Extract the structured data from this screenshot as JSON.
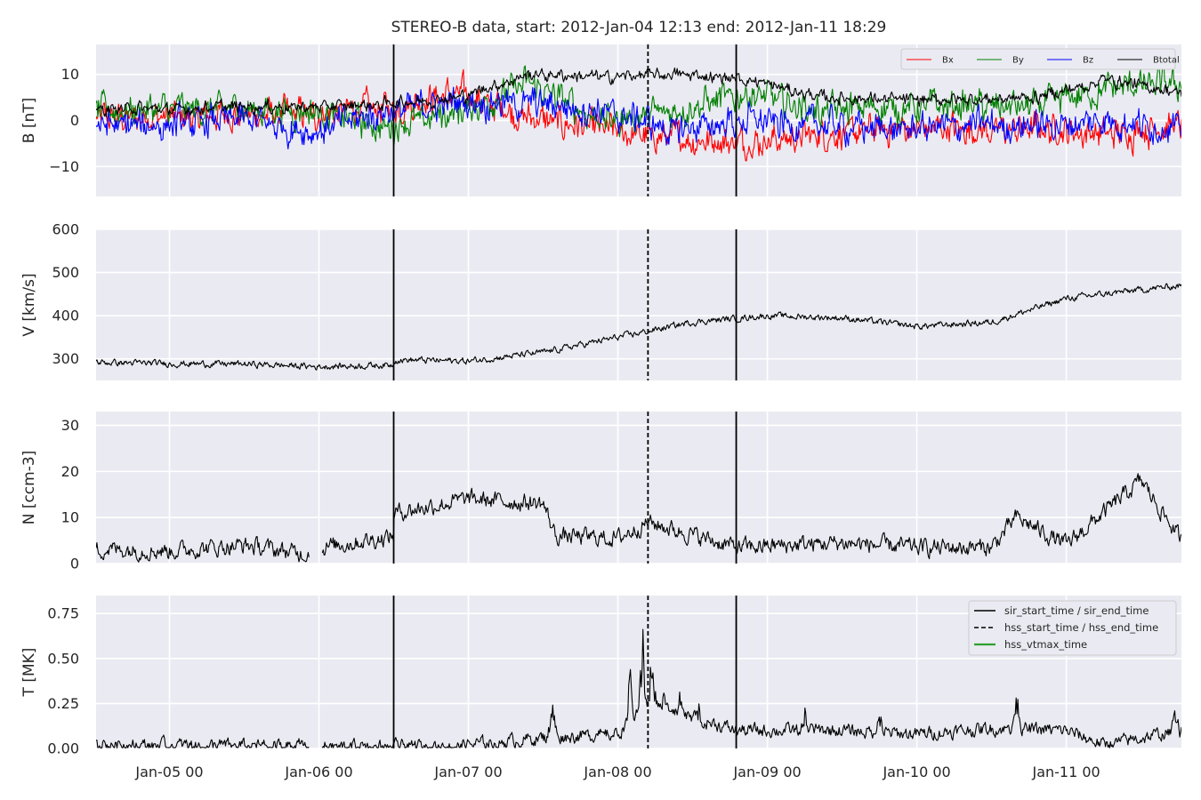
{
  "chart_data": {
    "type": "line",
    "title": "STEREO-B data, start: 2012-Jan-04 12:13  end: 2012-Jan-11 18:29",
    "x_range": [
      "2012-01-04 12:13",
      "2012-01-11 18:29"
    ],
    "x_tick_labels": [
      {
        "label": "Jan-05 00",
        "at": "2012-01-05 00:00"
      },
      {
        "label": "Jan-06 00",
        "at": "2012-01-06 00:00"
      },
      {
        "label": "Jan-07 00",
        "at": "2012-01-07 00:00"
      },
      {
        "label": "Jan-08 00",
        "at": "2012-01-08 00:00"
      },
      {
        "label": "Jan-09 00",
        "at": "2012-01-09 00:00"
      },
      {
        "label": "Jan-10 00",
        "at": "2012-01-10 00:00"
      },
      {
        "label": "Jan-11 00",
        "at": "2012-01-11 00:00"
      }
    ],
    "event_markers": [
      {
        "time": "2012-01-06 12:00",
        "style": "solid",
        "color": "#000000"
      },
      {
        "time": "2012-01-08 04:50",
        "style": "dashed",
        "color": "#000000"
      },
      {
        "time": "2012-01-08 19:00",
        "style": "solid",
        "color": "#000000"
      }
    ],
    "grid": true,
    "panels": [
      {
        "ylabel": "B [nT]",
        "ylim": [
          -16.5,
          16.5
        ],
        "yticks": [
          {
            "v": 10,
            "label": "10"
          },
          {
            "v": 0,
            "label": "0"
          },
          {
            "v": -10,
            "label": "−10"
          }
        ],
        "legend": {
          "placement": "top-right",
          "columns": 4,
          "entries": [
            "Bx",
            "By",
            "Bz",
            "Btotal"
          ]
        },
        "series": [
          {
            "name": "Bx",
            "color": "#ff0000",
            "noise": 1.0,
            "y_by_day": [
              0.5,
              0.8,
              1.0,
              1.5,
              2.5,
              6.0,
              0.5,
              -2.0,
              -4.0,
              -5.0,
              -3.0,
              -1.5,
              -2.0,
              -2.0,
              -3.0,
              -1.0
            ]
          },
          {
            "name": "By",
            "color": "#008000",
            "noise": 1.0,
            "y_by_day": [
              2.0,
              2.5,
              2.5,
              2.0,
              -1.5,
              2.0,
              8.0,
              0.0,
              2.0,
              6.0,
              2.0,
              3.0,
              3.0,
              3.0,
              7.0,
              8.0
            ]
          },
          {
            "name": "Bz",
            "color": "#0000ff",
            "noise": 1.0,
            "y_by_day": [
              -1.0,
              -1.0,
              0.0,
              -2.5,
              2.0,
              4.0,
              4.0,
              2.0,
              -2.0,
              0.0,
              -1.0,
              -2.0,
              -1.0,
              -1.0,
              0.0,
              -2.0
            ]
          },
          {
            "name": "Btotal",
            "color": "#000000",
            "noise": 0.4,
            "y_by_day": [
              2.5,
              2.5,
              3.0,
              3.0,
              3.5,
              5.0,
              10.0,
              9.5,
              10.0,
              9.0,
              5.0,
              4.5,
              4.5,
              5.0,
              9.0,
              6.0
            ]
          }
        ]
      },
      {
        "ylabel": "V [km/s]",
        "ylim": [
          250,
          600
        ],
        "yticks": [
          {
            "v": 600,
            "label": "600"
          },
          {
            "v": 500,
            "label": "500"
          },
          {
            "v": 400,
            "label": "400"
          },
          {
            "v": 300,
            "label": "300"
          }
        ],
        "series": [
          {
            "name": "",
            "color": "#000000",
            "noise": 6,
            "x": [
              "2012-01-04 12:13",
              "2012-01-05 00:00",
              "2012-01-05 12:00",
              "2012-01-06 00:00",
              "2012-01-06 12:00",
              "2012-01-06 12:01",
              "2012-01-07 00:00",
              "2012-01-07 12:00",
              "2012-01-08 00:00",
              "2012-01-08 12:00",
              "2012-01-09 00:00",
              "2012-01-09 12:00",
              "2012-01-10 00:00",
              "2012-01-10 12:00",
              "2012-01-11 00:00",
              "2012-01-11 12:00",
              "2012-01-11 18:29"
            ],
            "y": [
              292,
              289,
              288,
              282,
              286,
              298,
              295,
              315,
              350,
              385,
              400,
              395,
              375,
              385,
              440,
              460,
              470
            ]
          }
        ]
      },
      {
        "ylabel": "N [ccm-3]",
        "ylim": [
          0,
          33
        ],
        "yticks": [
          {
            "v": 30,
            "label": "30"
          },
          {
            "v": 20,
            "label": "20"
          },
          {
            "v": 10,
            "label": "10"
          },
          {
            "v": 0,
            "label": "0"
          }
        ],
        "gaps": [
          [
            "2012-01-05 22:30",
            "2012-01-06 00:30"
          ]
        ],
        "series": [
          {
            "name": "",
            "color": "#000000",
            "noise": 1.5,
            "x": [
              "2012-01-04 12:13",
              "2012-01-05 00:00",
              "2012-01-05 12:00",
              "2012-01-05 22:00",
              "2012-01-06 00:30",
              "2012-01-06 12:00",
              "2012-01-06 12:01",
              "2012-01-07 00:00",
              "2012-01-07 12:00",
              "2012-01-07 14:00",
              "2012-01-08 00:00",
              "2012-01-08 04:50",
              "2012-01-08 19:00",
              "2012-01-09 12:00",
              "2012-01-10 00:00",
              "2012-01-10 12:00",
              "2012-01-10 16:00",
              "2012-01-11 00:00",
              "2012-01-11 12:00",
              "2012-01-11 18:29"
            ],
            "y": [
              3.2,
              2.8,
              4.0,
              2.0,
              3.5,
              6.0,
              11.0,
              14.0,
              13.0,
              6.0,
              5.5,
              9.0,
              3.5,
              4.5,
              3.5,
              3.5,
              10.0,
              4.0,
              18.0,
              5.0
            ]
          }
        ]
      },
      {
        "ylabel": "T [MK]",
        "ylim": [
          0,
          0.85
        ],
        "yticks": [
          {
            "v": 0.75,
            "label": "0.75"
          },
          {
            "v": 0.5,
            "label": "0.50"
          },
          {
            "v": 0.25,
            "label": "0.25"
          },
          {
            "v": 0,
            "label": "0.00"
          }
        ],
        "gaps": [
          [
            "2012-01-05 22:30",
            "2012-01-06 00:30"
          ]
        ],
        "legend": {
          "placement": "top-right",
          "entries": [
            {
              "label": "sir_start_time / sir_end_time",
              "style": "solid",
              "color": "#000000"
            },
            {
              "label": "hss_start_time / hss_end_time",
              "style": "dashed",
              "color": "#000000"
            },
            {
              "label": "hss_vtmax_time",
              "style": "solid",
              "color": "#2ca02c"
            }
          ]
        },
        "series": [
          {
            "name": "",
            "color": "#000000",
            "noise": 0.03,
            "x": [
              "2012-01-04 12:13",
              "2012-01-05 12:00",
              "2012-01-06 12:00",
              "2012-01-07 00:00",
              "2012-01-07 12:00",
              "2012-01-08 00:00",
              "2012-01-08 04:50",
              "2012-01-08 19:00",
              "2012-01-09 12:00",
              "2012-01-10 00:00",
              "2012-01-10 12:00",
              "2012-01-11 00:00",
              "2012-01-11 06:00",
              "2012-01-11 18:29"
            ],
            "y": [
              0.02,
              0.015,
              0.01,
              0.02,
              0.06,
              0.08,
              0.25,
              0.1,
              0.1,
              0.08,
              0.11,
              0.1,
              0.02,
              0.1
            ],
            "spikes": [
              {
                "at": "2012-01-07 13:30",
                "peak": 0.27
              },
              {
                "at": "2012-01-07 21:00",
                "peak": 0.15
              },
              {
                "at": "2012-01-08 02:00",
                "peak": 0.45
              },
              {
                "at": "2012-01-08 04:00",
                "peak": 0.68
              },
              {
                "at": "2012-01-08 05:30",
                "peak": 0.6
              },
              {
                "at": "2012-01-08 07:30",
                "peak": 0.5
              },
              {
                "at": "2012-01-08 10:00",
                "peak": 0.38
              },
              {
                "at": "2012-01-08 13:00",
                "peak": 0.25
              },
              {
                "at": "2012-01-09 06:00",
                "peak": 0.24
              },
              {
                "at": "2012-01-09 18:00",
                "peak": 0.22
              },
              {
                "at": "2012-01-10 16:00",
                "peak": 0.35
              },
              {
                "at": "2012-01-11 17:30",
                "peak": 0.28
              }
            ]
          }
        ]
      }
    ]
  }
}
